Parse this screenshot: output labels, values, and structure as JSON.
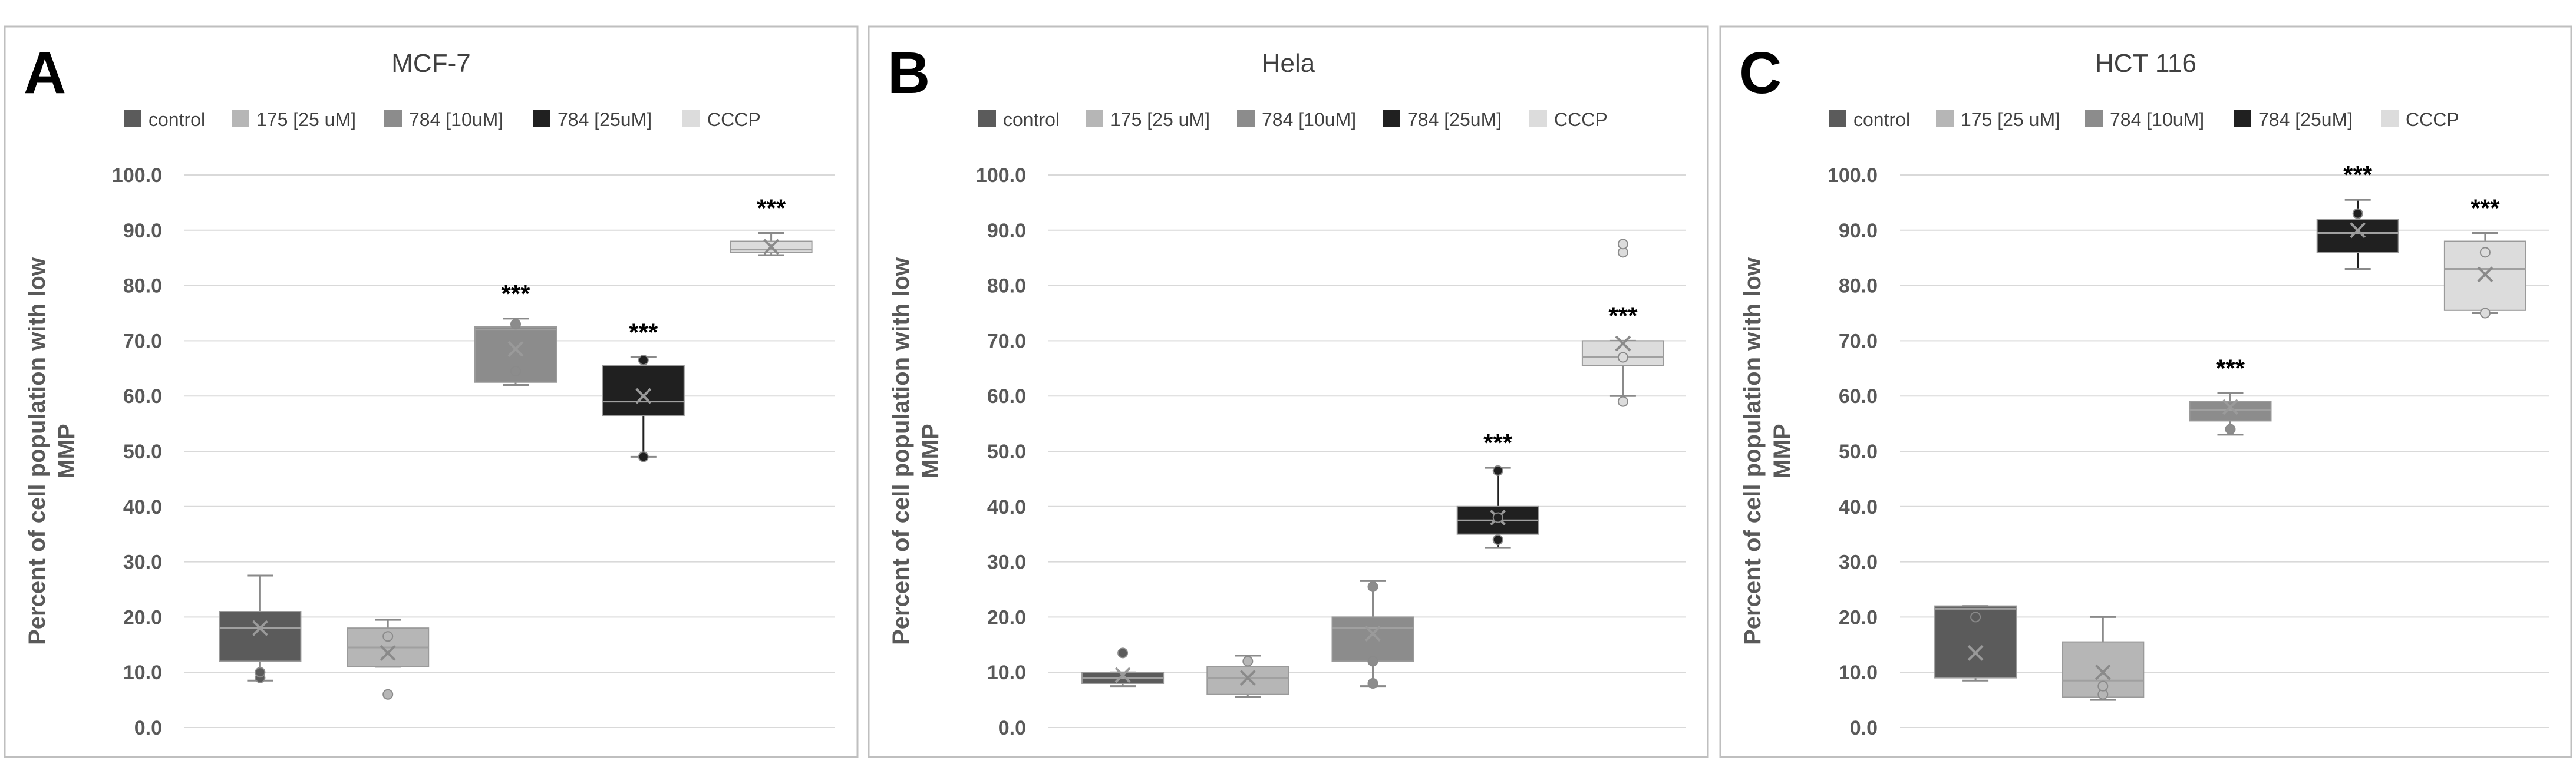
{
  "colors": {
    "control": "#5b5b5b",
    "175 [25 uM]": "#b6b6b6",
    "784 [10uM]": "#8c8c8c",
    "784 [25uM]": "#202020",
    "CCCP": "#dcdcdc",
    "grid": "#d9d9d9",
    "frame": "#bfbfbf",
    "text": "#404040"
  },
  "chart_data": [
    {
      "panel_letter": "A",
      "title": "MCF-7",
      "type": "box",
      "ylabel": "Percent of cell population with low MMP",
      "ylim": [
        0,
        100
      ],
      "yticks": [
        "0.0",
        "10.0",
        "20.0",
        "30.0",
        "40.0",
        "50.0",
        "60.0",
        "70.0",
        "80.0",
        "90.0",
        "100.0"
      ],
      "legend": [
        "control",
        "175 [25 uM]",
        "784 [10uM]",
        "784 [25uM]",
        "CCCP"
      ],
      "series": [
        {
          "name": "control",
          "min": 8.5,
          "q1": 12.0,
          "median": 18.0,
          "q3": 21.0,
          "max": 27.5,
          "mean": 18.0,
          "points": [
            9.0,
            10.0
          ],
          "sig": ""
        },
        {
          "name": "175 [25 uM]",
          "min": 11.0,
          "q1": 11.0,
          "median": 14.5,
          "q3": 18.0,
          "max": 19.5,
          "mean": 13.5,
          "points": [
            6.0,
            16.5
          ],
          "sig": ""
        },
        {
          "name": "784 [10uM]",
          "min": 62.0,
          "q1": 62.5,
          "median": 72.0,
          "q3": 72.5,
          "max": 74.0,
          "mean": 68.5,
          "points": [
            64.5,
            73.0
          ],
          "sig": "***"
        },
        {
          "name": "784 [25uM]",
          "min": 49.0,
          "q1": 56.5,
          "median": 59.0,
          "q3": 65.5,
          "max": 67.0,
          "mean": 60.0,
          "points": [
            49.0,
            66.5
          ],
          "sig": "***"
        },
        {
          "name": "CCCP",
          "min": 85.5,
          "q1": 86.0,
          "median": 86.5,
          "q3": 88.0,
          "max": 89.5,
          "mean": 87.0,
          "points": [],
          "sig": "***"
        }
      ]
    },
    {
      "panel_letter": "B",
      "title": "Hela",
      "type": "box",
      "ylabel": "Percent of cell population with low MMP",
      "ylim": [
        0,
        100
      ],
      "yticks": [
        "0.0",
        "10.0",
        "20.0",
        "30.0",
        "40.0",
        "50.0",
        "60.0",
        "70.0",
        "80.0",
        "90.0",
        "100.0"
      ],
      "legend": [
        "control",
        "175 [25 uM]",
        "784 [10uM]",
        "784 [25uM]",
        "CCCP"
      ],
      "series": [
        {
          "name": "control",
          "min": 7.5,
          "q1": 8.0,
          "median": 9.0,
          "q3": 10.0,
          "max": 10.0,
          "mean": 9.5,
          "points": [
            13.5
          ],
          "sig": ""
        },
        {
          "name": "175 [25 uM]",
          "min": 5.5,
          "q1": 6.0,
          "median": 9.0,
          "q3": 11.0,
          "max": 13.0,
          "mean": 9.0,
          "points": [
            12.0
          ],
          "sig": ""
        },
        {
          "name": "784 [10uM]",
          "min": 7.5,
          "q1": 12.0,
          "median": 18.0,
          "q3": 20.0,
          "max": 26.5,
          "mean": 17.0,
          "points": [
            8.0,
            12.0,
            25.5
          ],
          "sig": ""
        },
        {
          "name": "784 [25uM]",
          "min": 32.5,
          "q1": 35.0,
          "median": 37.5,
          "q3": 40.0,
          "max": 47.0,
          "mean": 38.0,
          "points": [
            34.0,
            38.0,
            46.5
          ],
          "sig": "***"
        },
        {
          "name": "CCCP",
          "min": 60.0,
          "q1": 65.5,
          "median": 67.0,
          "q3": 70.0,
          "max": 70.0,
          "mean": 69.5,
          "points": [
            59.0,
            67.0,
            86.0,
            87.5
          ],
          "sig": "***"
        }
      ]
    },
    {
      "panel_letter": "C",
      "title": "HCT 116",
      "type": "box",
      "ylabel": "Percent of cell population with low MMP",
      "ylim": [
        0,
        100
      ],
      "yticks": [
        "0.0",
        "10.0",
        "20.0",
        "30.0",
        "40.0",
        "50.0",
        "60.0",
        "70.0",
        "80.0",
        "90.0",
        "100.0"
      ],
      "legend": [
        "control",
        "175 [25 uM]",
        "784 [10uM]",
        "784 [25uM]",
        "CCCP"
      ],
      "series": [
        {
          "name": "control",
          "min": 8.5,
          "q1": 9.0,
          "median": 21.5,
          "q3": 22.0,
          "max": 22.0,
          "mean": 13.5,
          "points": [
            20.0
          ],
          "sig": ""
        },
        {
          "name": "175 [25 uM]",
          "min": 5.0,
          "q1": 5.5,
          "median": 8.5,
          "q3": 15.5,
          "max": 20.0,
          "mean": 10.0,
          "points": [
            6.0,
            7.5
          ],
          "sig": ""
        },
        {
          "name": "784 [10uM]",
          "min": 53.0,
          "q1": 55.5,
          "median": 57.5,
          "q3": 59.0,
          "max": 60.5,
          "mean": 58.0,
          "points": [
            54.0
          ],
          "sig": "***"
        },
        {
          "name": "784 [25uM]",
          "min": 83.0,
          "q1": 86.0,
          "median": 89.5,
          "q3": 92.0,
          "max": 95.5,
          "mean": 90.0,
          "points": [
            93.0
          ],
          "sig": "***"
        },
        {
          "name": "CCCP",
          "min": 75.0,
          "q1": 75.5,
          "median": 83.0,
          "q3": 88.0,
          "max": 89.5,
          "mean": 82.0,
          "points": [
            75.0,
            86.0
          ],
          "sig": "***"
        }
      ]
    }
  ]
}
